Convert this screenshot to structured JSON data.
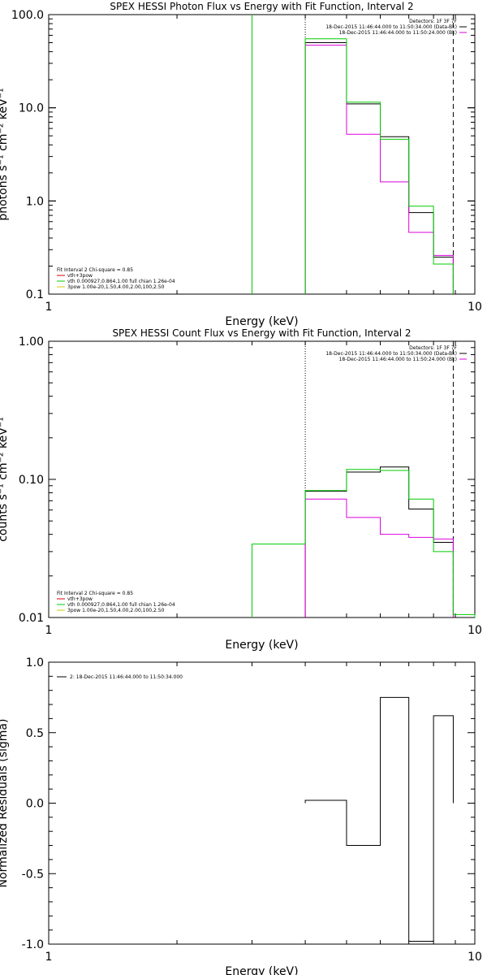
{
  "chart_data": [
    {
      "type": "line",
      "title": "SPEX HESSI Photon Flux vs Energy with Fit Function, Interval 2",
      "xlabel": "Energy (keV)",
      "ylabel": "photons s⁻¹ cm⁻² keV⁻¹",
      "xscale": "log",
      "yscale": "log",
      "xlim": [
        1,
        10
      ],
      "ylim": [
        0.1,
        100
      ],
      "x_ticks": [
        "1",
        "10"
      ],
      "y_ticks": [
        "0.1",
        "1.0",
        "10.0",
        "100.0"
      ],
      "vlines": [
        {
          "x": 3.0,
          "color": "#00cc00",
          "style": "solid"
        },
        {
          "x": 4.0,
          "color": "#000000",
          "style": "dotted"
        },
        {
          "x": 8.9,
          "color": "#000000",
          "style": "dashed"
        }
      ],
      "edges": [
        4.0,
        5.0,
        6.0,
        7.0,
        8.0,
        8.9
      ],
      "series": [
        {
          "color": "#000000",
          "values": [
            50,
            11.0,
            4.9,
            0.75,
            0.25
          ]
        },
        {
          "color": "#dd00dd",
          "values": [
            47,
            5.2,
            1.6,
            0.46,
            0.26
          ]
        },
        {
          "color": "#00cc00",
          "values": [
            55,
            11.5,
            4.6,
            0.88,
            0.21
          ]
        }
      ],
      "legend_top_right": [
        {
          "text": "Detectors: 1F 3F 7F",
          "color": ""
        },
        {
          "text": "18-Dec-2015 11:46:44.000 to 11:50:34.000 (Data-Bk)",
          "color": "#000000"
        },
        {
          "text": "18-Dec-2015 11:46:44.000 to 11:50:24.000 (Bk)",
          "color": "#dd00dd"
        }
      ],
      "legend_bottom_left": [
        {
          "text": "Fit Interval 2   Chi-square = 0.85",
          "color": ""
        },
        {
          "text": "vth+3pow",
          "color": "#dd0000"
        },
        {
          "text": "vth 0.000927,0.864,1.00  full chian 1.26e-04",
          "color": "#00cc00"
        },
        {
          "text": "3pow 1.00e-20,1.50,4.00,2.00,100,2.50",
          "color": "#cccc00"
        }
      ]
    },
    {
      "type": "line",
      "title": "SPEX HESSI Count Flux vs Energy with Fit Function, Interval 2",
      "xlabel": "Energy (keV)",
      "ylabel": "counts s⁻¹ cm⁻² keV⁻¹",
      "xscale": "log",
      "yscale": "log",
      "xlim": [
        1,
        10
      ],
      "ylim": [
        0.01,
        1
      ],
      "x_ticks": [
        "1",
        "10"
      ],
      "y_ticks": [
        "0.01",
        "0.10",
        "1.00"
      ],
      "vlines": [
        {
          "x": 4.0,
          "color": "#000000",
          "style": "dotted"
        },
        {
          "x": 8.9,
          "color": "#000000",
          "style": "dashed"
        }
      ],
      "edges": [
        3.0,
        4.0,
        5.0,
        6.0,
        7.0,
        8.0,
        8.9,
        10.0
      ],
      "series": [
        {
          "color": "#000000",
          "values": [
            null,
            0.082,
            0.113,
            0.123,
            0.061,
            0.035,
            null
          ]
        },
        {
          "color": "#dd00dd",
          "values": [
            null,
            0.072,
            0.053,
            0.04,
            0.038,
            0.037,
            null
          ]
        },
        {
          "color": "#00cc00",
          "values": [
            0.034,
            0.083,
            0.118,
            0.116,
            0.072,
            0.03,
            0.0105
          ]
        }
      ],
      "legend_top_right": [
        {
          "text": "Detectors: 1F 3F 7F",
          "color": ""
        },
        {
          "text": "18-Dec-2015 11:46:44.000 to 11:50:34.000 (Data-Bk)",
          "color": "#000000"
        },
        {
          "text": "18-Dec-2015 11:46:44.000 to 11:50:24.000 (Bk)",
          "color": "#dd00dd"
        }
      ],
      "legend_bottom_left": [
        {
          "text": "Fit Interval 2   Chi-square = 0.85",
          "color": ""
        },
        {
          "text": "vth+3pow",
          "color": "#dd0000"
        },
        {
          "text": "vth 0.000927,0.864,1.00  full chian 1.26e-04",
          "color": "#00cc00"
        },
        {
          "text": "3pow 1.00e-20,1.50,4.00,2.00,100,2.50",
          "color": "#cccc00"
        }
      ]
    },
    {
      "type": "line",
      "title": "",
      "xlabel": "Energy (keV)",
      "ylabel": "Normalized Residuals (sigma)",
      "xscale": "log",
      "yscale": "linear",
      "xlim": [
        1,
        10
      ],
      "ylim": [
        -1.0,
        1.0
      ],
      "x_ticks": [
        "1",
        "10"
      ],
      "y_ticks": [
        "-1.0",
        "-0.5",
        "0.0",
        "0.5",
        "1.0"
      ],
      "edges": [
        4.0,
        5.0,
        6.0,
        7.0,
        8.0,
        8.9
      ],
      "series": [
        {
          "color": "#000000",
          "values": [
            0.02,
            -0.3,
            0.75,
            -0.98,
            0.62
          ]
        }
      ],
      "legend_top_left": [
        {
          "text": "2: 18-Dec-2015 11:46:44.000 to 11:50:34.000",
          "color": "#000000"
        }
      ]
    }
  ]
}
